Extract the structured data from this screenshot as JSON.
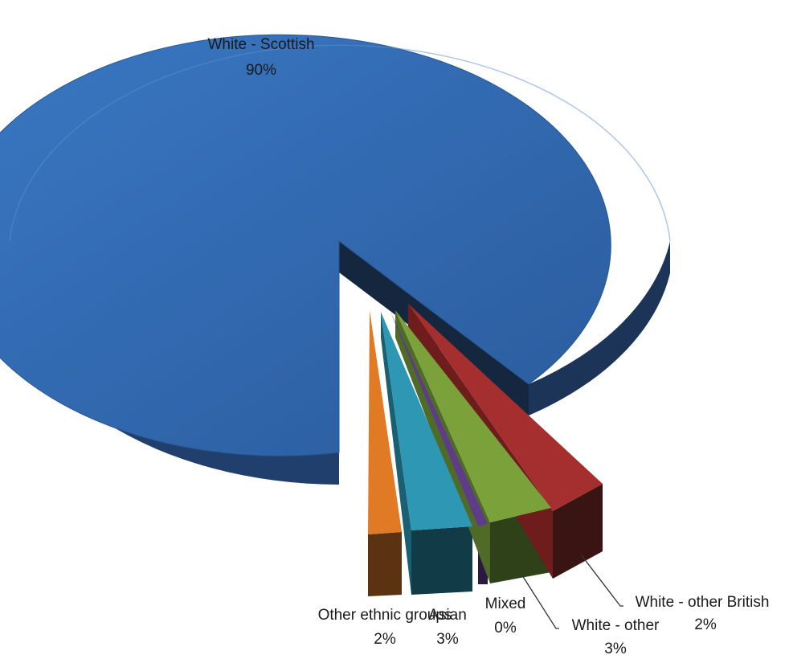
{
  "chart_data": {
    "type": "pie",
    "title": "",
    "style": "3d-exploded",
    "legend": "none",
    "slices": [
      {
        "name": "White - Scottish",
        "value": 90,
        "label": "90%",
        "color": "#2E66AE"
      },
      {
        "name": "White - other British",
        "value": 2,
        "label": "2%",
        "color": "#A52F2F"
      },
      {
        "name": "White - other",
        "value": 3,
        "label": "3%",
        "color": "#7BA23A"
      },
      {
        "name": "Mixed",
        "value": 0.4,
        "label": "0%",
        "color": "#5E3C8A"
      },
      {
        "name": "Asian",
        "value": 3,
        "label": "3%",
        "color": "#2E97B4"
      },
      {
        "name": "Other ethnic groups",
        "value": 2,
        "label": "2%",
        "color": "#E07A24"
      }
    ]
  }
}
